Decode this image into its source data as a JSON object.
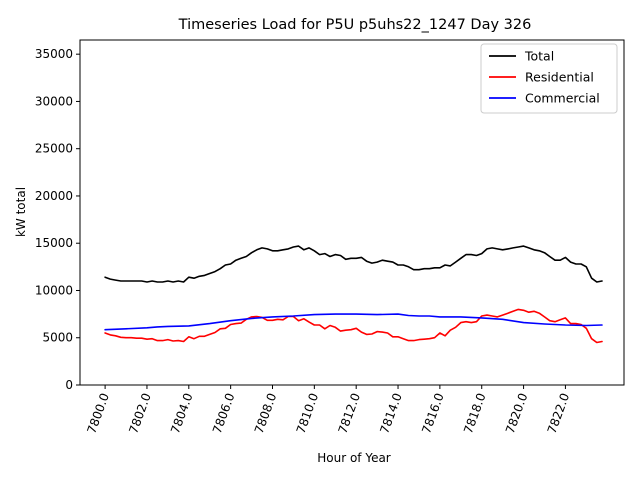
{
  "chart_data": {
    "type": "line",
    "title": "Timeseries Load for P5U p5uhs22_1247  Day 326",
    "xlabel": "Hour of Year",
    "ylabel": "kW total",
    "xlim": [
      7798.8,
      7824.8
    ],
    "ylim": [
      0,
      36500
    ],
    "xticks": [
      7800,
      7802,
      7804,
      7806,
      7808,
      7810,
      7812,
      7814,
      7816,
      7818,
      7820,
      7822
    ],
    "xtick_labels": [
      "7800.0",
      "7802.0",
      "7804.0",
      "7806.0",
      "7808.0",
      "7810.0",
      "7812.0",
      "7814.0",
      "7816.0",
      "7818.0",
      "7820.0",
      "7822.0"
    ],
    "yticks": [
      0,
      5000,
      10000,
      15000,
      20000,
      25000,
      30000,
      35000
    ],
    "ytick_labels": [
      "0",
      "5000",
      "10000",
      "15000",
      "20000",
      "25000",
      "30000",
      "35000"
    ],
    "legend_position": "top-right",
    "series": [
      {
        "name": "Total",
        "color": "#000000",
        "x": [
          7800.0,
          7800.25,
          7800.5,
          7800.75,
          7801.0,
          7801.25,
          7801.5,
          7801.75,
          7802.0,
          7802.25,
          7802.5,
          7802.75,
          7803.0,
          7803.25,
          7803.5,
          7803.75,
          7804.0,
          7804.25,
          7804.5,
          7804.75,
          7805.0,
          7805.25,
          7805.5,
          7805.75,
          7806.0,
          7806.25,
          7806.5,
          7806.75,
          7807.0,
          7807.25,
          7807.5,
          7807.75,
          7808.0,
          7808.25,
          7808.5,
          7808.75,
          7809.0,
          7809.25,
          7809.5,
          7809.75,
          7810.0,
          7810.25,
          7810.5,
          7810.75,
          7811.0,
          7811.25,
          7811.5,
          7811.75,
          7812.0,
          7812.25,
          7812.5,
          7812.75,
          7813.0,
          7813.25,
          7813.5,
          7813.75,
          7814.0,
          7814.25,
          7814.5,
          7814.75,
          7815.0,
          7815.25,
          7815.5,
          7815.75,
          7816.0,
          7816.25,
          7816.5,
          7816.75,
          7817.0,
          7817.25,
          7817.5,
          7817.75,
          7818.0,
          7818.25,
          7818.5,
          7818.75,
          7819.0,
          7819.25,
          7819.5,
          7819.75,
          7820.0,
          7820.25,
          7820.5,
          7820.75,
          7821.0,
          7821.25,
          7821.5,
          7821.75,
          7822.0,
          7822.25,
          7822.5,
          7822.75,
          7823.0,
          7823.25,
          7823.5,
          7823.75
        ],
        "y": [
          11400,
          11200,
          11100,
          11000,
          11000,
          11000,
          11000,
          11000,
          10900,
          11000,
          10900,
          10900,
          11000,
          10900,
          11000,
          10900,
          11400,
          11300,
          11500,
          11600,
          11800,
          12000,
          12300,
          12700,
          12800,
          13200,
          13400,
          13600,
          14000,
          14300,
          14500,
          14400,
          14200,
          14200,
          14300,
          14400,
          14600,
          14700,
          14300,
          14500,
          14200,
          13800,
          13900,
          13600,
          13800,
          13700,
          13300,
          13400,
          13400,
          13500,
          13100,
          12900,
          13000,
          13200,
          13100,
          13000,
          12700,
          12700,
          12500,
          12200,
          12200,
          12300,
          12300,
          12400,
          12400,
          12700,
          12600,
          13000,
          13400,
          13800,
          13800,
          13700,
          13900,
          14400,
          14500,
          14400,
          14300,
          14400,
          14500,
          14600,
          14700,
          14500,
          14300,
          14200,
          14000,
          13600,
          13200,
          13200,
          13500,
          13000,
          12800,
          12800,
          12500,
          11300,
          10900,
          11000
        ]
      },
      {
        "name": "Residential",
        "color": "#ff0000",
        "x": [
          7800.0,
          7800.25,
          7800.5,
          7800.75,
          7801.0,
          7801.25,
          7801.5,
          7801.75,
          7802.0,
          7802.25,
          7802.5,
          7802.75,
          7803.0,
          7803.25,
          7803.5,
          7803.75,
          7804.0,
          7804.25,
          7804.5,
          7804.75,
          7805.0,
          7805.25,
          7805.5,
          7805.75,
          7806.0,
          7806.25,
          7806.5,
          7806.75,
          7807.0,
          7807.25,
          7807.5,
          7807.75,
          7808.0,
          7808.25,
          7808.5,
          7808.75,
          7809.0,
          7809.25,
          7809.5,
          7809.75,
          7810.0,
          7810.25,
          7810.5,
          7810.75,
          7811.0,
          7811.25,
          7811.5,
          7811.75,
          7812.0,
          7812.25,
          7812.5,
          7812.75,
          7813.0,
          7813.25,
          7813.5,
          7813.75,
          7814.0,
          7814.25,
          7814.5,
          7814.75,
          7815.0,
          7815.25,
          7815.5,
          7815.75,
          7816.0,
          7816.25,
          7816.5,
          7816.75,
          7817.0,
          7817.25,
          7817.5,
          7817.75,
          7818.0,
          7818.25,
          7818.5,
          7818.75,
          7819.0,
          7819.25,
          7819.5,
          7819.75,
          7820.0,
          7820.25,
          7820.5,
          7820.75,
          7821.0,
          7821.25,
          7821.5,
          7821.75,
          7822.0,
          7822.25,
          7822.5,
          7822.75,
          7823.0,
          7823.25,
          7823.5,
          7823.75
        ],
        "y": [
          5500,
          5300,
          5200,
          5050,
          5000,
          5000,
          4950,
          4950,
          4850,
          4900,
          4700,
          4700,
          4800,
          4650,
          4700,
          4600,
          5100,
          4900,
          5150,
          5150,
          5350,
          5550,
          5950,
          6000,
          6400,
          6500,
          6550,
          6950,
          7200,
          7250,
          7150,
          6850,
          6850,
          6950,
          6900,
          7250,
          7250,
          6800,
          7000,
          6650,
          6350,
          6350,
          5950,
          6300,
          6100,
          5700,
          5800,
          5850,
          6000,
          5600,
          5350,
          5400,
          5650,
          5600,
          5500,
          5100,
          5100,
          4900,
          4700,
          4700,
          4800,
          4850,
          4900,
          5000,
          5500,
          5200,
          5800,
          6100,
          6600,
          6700,
          6600,
          6700,
          7300,
          7400,
          7300,
          7200,
          7400,
          7600,
          7800,
          8000,
          7900,
          7700,
          7800,
          7600,
          7200,
          6800,
          6700,
          6900,
          7100,
          6500,
          6500,
          6400,
          6000,
          4900,
          4500,
          4600
        ]
      },
      {
        "name": "Commercial",
        "color": "#0000ff",
        "x": [
          7800.0,
          7801.0,
          7802.0,
          7802.5,
          7803.0,
          7804.0,
          7805.0,
          7806.0,
          7807.0,
          7808.0,
          7809.0,
          7810.0,
          7811.0,
          7812.0,
          7813.0,
          7814.0,
          7814.5,
          7815.0,
          7815.5,
          7816.0,
          7817.0,
          7818.0,
          7819.0,
          7820.0,
          7821.0,
          7822.0,
          7823.0,
          7823.75
        ],
        "y": [
          5850,
          5950,
          6050,
          6150,
          6200,
          6250,
          6500,
          6800,
          7050,
          7200,
          7300,
          7450,
          7500,
          7500,
          7450,
          7500,
          7350,
          7300,
          7300,
          7200,
          7200,
          7100,
          6950,
          6600,
          6450,
          6350,
          6300,
          6350
        ]
      }
    ]
  }
}
